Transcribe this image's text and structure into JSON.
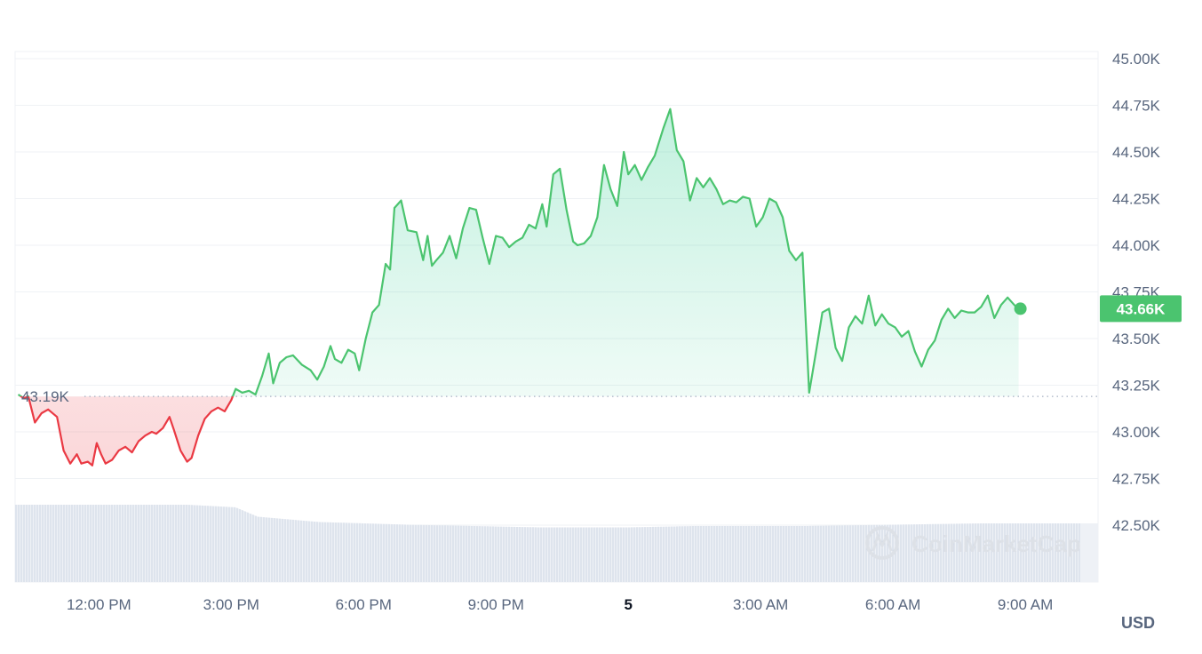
{
  "chart_data": {
    "type": "line",
    "title": "",
    "xlabel": "",
    "ylabel": "",
    "unit_label": "USD",
    "ylim": [
      42300,
      45000
    ],
    "y_ticks": [
      "45.00K",
      "44.75K",
      "44.50K",
      "44.25K",
      "44.00K",
      "43.75K",
      "43.50K",
      "43.25K",
      "43.00K",
      "42.75K",
      "42.50K"
    ],
    "y_tick_values": [
      45000,
      44750,
      44500,
      44250,
      44000,
      43750,
      43500,
      43250,
      43000,
      42750,
      42500
    ],
    "x_ticks": [
      {
        "label": "12:00 PM",
        "hour": 12,
        "bold": false
      },
      {
        "label": "3:00 PM",
        "hour": 15,
        "bold": false
      },
      {
        "label": "6:00 PM",
        "hour": 18,
        "bold": false
      },
      {
        "label": "9:00 PM",
        "hour": 21,
        "bold": false
      },
      {
        "label": "5",
        "hour": 24,
        "bold": true
      },
      {
        "label": "3:00 AM",
        "hour": 27,
        "bold": false
      },
      {
        "label": "6:00 AM",
        "hour": 30,
        "bold": false
      },
      {
        "label": "9:00 AM",
        "hour": 33,
        "bold": false
      }
    ],
    "x_range_hours": [
      10.1,
      34.65
    ],
    "reference": {
      "label": "43.19K",
      "value": 43190
    },
    "current": {
      "label": "43.66K",
      "value": 43660
    },
    "colors": {
      "up": "#16c784",
      "line_up": "#4bc46f",
      "down": "#ea3943",
      "grid": "#eff2f5",
      "volume": "#cfd6e4",
      "badge": "#4bc46f"
    },
    "watermark": "CoinMarketCap",
    "price_series": [
      [
        10.17,
        43200
      ],
      [
        10.3,
        43180
      ],
      [
        10.4,
        43190
      ],
      [
        10.55,
        43050
      ],
      [
        10.7,
        43100
      ],
      [
        10.85,
        43120
      ],
      [
        11.05,
        43080
      ],
      [
        11.2,
        42900
      ],
      [
        11.35,
        42830
      ],
      [
        11.5,
        42880
      ],
      [
        11.6,
        42830
      ],
      [
        11.75,
        42840
      ],
      [
        11.85,
        42820
      ],
      [
        11.95,
        42940
      ],
      [
        12.05,
        42880
      ],
      [
        12.15,
        42830
      ],
      [
        12.3,
        42850
      ],
      [
        12.45,
        42900
      ],
      [
        12.6,
        42920
      ],
      [
        12.75,
        42890
      ],
      [
        12.9,
        42950
      ],
      [
        13.05,
        42980
      ],
      [
        13.2,
        43000
      ],
      [
        13.3,
        42990
      ],
      [
        13.45,
        43020
      ],
      [
        13.6,
        43080
      ],
      [
        13.7,
        43010
      ],
      [
        13.85,
        42900
      ],
      [
        14.0,
        42840
      ],
      [
        14.1,
        42860
      ],
      [
        14.25,
        42980
      ],
      [
        14.4,
        43070
      ],
      [
        14.55,
        43110
      ],
      [
        14.7,
        43130
      ],
      [
        14.85,
        43110
      ],
      [
        15.0,
        43170
      ],
      [
        15.1,
        43230
      ],
      [
        15.25,
        43210
      ],
      [
        15.4,
        43220
      ],
      [
        15.55,
        43200
      ],
      [
        15.7,
        43300
      ],
      [
        15.85,
        43420
      ],
      [
        15.95,
        43260
      ],
      [
        16.1,
        43370
      ],
      [
        16.25,
        43400
      ],
      [
        16.4,
        43410
      ],
      [
        16.6,
        43360
      ],
      [
        16.8,
        43330
      ],
      [
        16.95,
        43280
      ],
      [
        17.1,
        43350
      ],
      [
        17.25,
        43460
      ],
      [
        17.35,
        43390
      ],
      [
        17.5,
        43370
      ],
      [
        17.65,
        43440
      ],
      [
        17.8,
        43420
      ],
      [
        17.9,
        43330
      ],
      [
        18.05,
        43500
      ],
      [
        18.2,
        43640
      ],
      [
        18.35,
        43680
      ],
      [
        18.5,
        43900
      ],
      [
        18.6,
        43870
      ],
      [
        18.7,
        44200
      ],
      [
        18.85,
        44240
      ],
      [
        19.0,
        44080
      ],
      [
        19.2,
        44070
      ],
      [
        19.35,
        43920
      ],
      [
        19.45,
        44050
      ],
      [
        19.55,
        43890
      ],
      [
        19.65,
        43920
      ],
      [
        19.8,
        43960
      ],
      [
        19.95,
        44050
      ],
      [
        20.1,
        43930
      ],
      [
        20.25,
        44090
      ],
      [
        20.4,
        44200
      ],
      [
        20.55,
        44190
      ],
      [
        20.7,
        44040
      ],
      [
        20.85,
        43900
      ],
      [
        21.0,
        44050
      ],
      [
        21.15,
        44040
      ],
      [
        21.3,
        43990
      ],
      [
        21.45,
        44020
      ],
      [
        21.6,
        44040
      ],
      [
        21.75,
        44110
      ],
      [
        21.9,
        44090
      ],
      [
        22.05,
        44220
      ],
      [
        22.15,
        44100
      ],
      [
        22.3,
        44380
      ],
      [
        22.45,
        44410
      ],
      [
        22.6,
        44190
      ],
      [
        22.75,
        44020
      ],
      [
        22.85,
        44000
      ],
      [
        23.0,
        44010
      ],
      [
        23.15,
        44050
      ],
      [
        23.3,
        44150
      ],
      [
        23.45,
        44430
      ],
      [
        23.6,
        44300
      ],
      [
        23.75,
        44210
      ],
      [
        23.9,
        44500
      ],
      [
        24.0,
        44380
      ],
      [
        24.15,
        44430
      ],
      [
        24.3,
        44350
      ],
      [
        24.45,
        44420
      ],
      [
        24.6,
        44480
      ],
      [
        24.8,
        44630
      ],
      [
        24.95,
        44730
      ],
      [
        25.1,
        44510
      ],
      [
        25.25,
        44450
      ],
      [
        25.4,
        44240
      ],
      [
        25.55,
        44360
      ],
      [
        25.7,
        44310
      ],
      [
        25.85,
        44360
      ],
      [
        26.0,
        44300
      ],
      [
        26.15,
        44220
      ],
      [
        26.3,
        44240
      ],
      [
        26.45,
        44230
      ],
      [
        26.6,
        44260
      ],
      [
        26.75,
        44250
      ],
      [
        26.9,
        44100
      ],
      [
        27.05,
        44150
      ],
      [
        27.2,
        44250
      ],
      [
        27.35,
        44230
      ],
      [
        27.5,
        44150
      ],
      [
        27.65,
        43970
      ],
      [
        27.8,
        43920
      ],
      [
        27.95,
        43960
      ],
      [
        28.1,
        43210
      ],
      [
        28.25,
        43420
      ],
      [
        28.4,
        43640
      ],
      [
        28.55,
        43660
      ],
      [
        28.7,
        43450
      ],
      [
        28.85,
        43380
      ],
      [
        29.0,
        43560
      ],
      [
        29.15,
        43620
      ],
      [
        29.3,
        43580
      ],
      [
        29.45,
        43730
      ],
      [
        29.6,
        43570
      ],
      [
        29.75,
        43630
      ],
      [
        29.9,
        43580
      ],
      [
        30.05,
        43560
      ],
      [
        30.2,
        43510
      ],
      [
        30.35,
        43540
      ],
      [
        30.5,
        43430
      ],
      [
        30.65,
        43350
      ],
      [
        30.8,
        43440
      ],
      [
        30.95,
        43490
      ],
      [
        31.1,
        43600
      ],
      [
        31.25,
        43660
      ],
      [
        31.4,
        43610
      ],
      [
        31.55,
        43650
      ],
      [
        31.7,
        43640
      ],
      [
        31.85,
        43640
      ],
      [
        32.0,
        43670
      ],
      [
        32.15,
        43730
      ],
      [
        32.3,
        43610
      ],
      [
        32.45,
        43680
      ],
      [
        32.6,
        43720
      ],
      [
        32.75,
        43680
      ],
      [
        32.85,
        43660
      ]
    ],
    "volume_series": [
      [
        10.1,
        0.58
      ],
      [
        14.0,
        0.58
      ],
      [
        15.1,
        0.56
      ],
      [
        15.6,
        0.49
      ],
      [
        17.0,
        0.45
      ],
      [
        19.0,
        0.43
      ],
      [
        22.0,
        0.41
      ],
      [
        24.0,
        0.41
      ],
      [
        25.5,
        0.42
      ],
      [
        28.0,
        0.42
      ],
      [
        30.0,
        0.43
      ],
      [
        32.0,
        0.44
      ],
      [
        34.65,
        0.44
      ]
    ]
  }
}
